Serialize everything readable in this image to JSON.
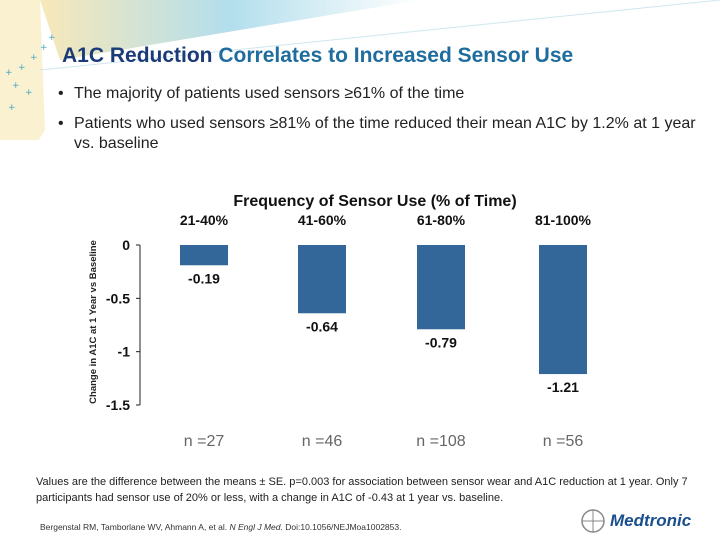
{
  "title": {
    "part1": "A1C Reduction",
    "part2": "Correlates to Increased Sensor Use"
  },
  "bullets": [
    "The majority of patients used sensors ≥61% of the time",
    "Patients who used sensors ≥81% of the time reduced their mean A1C by 1.2% at 1 year vs. baseline"
  ],
  "bullet_glyph": "•",
  "chart_data": {
    "type": "bar",
    "title": "Frequency of Sensor Use (% of Time)",
    "ylabel": "Change in A1C at 1 Year vs Baseline",
    "categories": [
      "21-40%",
      "41-60%",
      "61-80%",
      "81-100%"
    ],
    "values": [
      -0.19,
      -0.64,
      -0.79,
      -1.21
    ],
    "data_labels": [
      "-0.19",
      "-0.64",
      "-0.79",
      "-1.21"
    ],
    "n_labels": [
      "n =27",
      "n =46",
      "n =108",
      "n =56"
    ],
    "yticks": [
      "0",
      "-0.5",
      "-1",
      "-1.5"
    ],
    "ytick_values": [
      0,
      -0.5,
      -1,
      -1.5
    ],
    "ylim": [
      -1.5,
      0
    ],
    "grid": false,
    "bar_color": "#336699"
  },
  "footnote": "Values are the difference between the means ± SE. p=0.003 for association between sensor wear and A1C reduction at 1 year.  Only 7 participants had sensor use of 20% or less, with a change in A1C of -0.43 at 1 year vs. baseline.",
  "citation": {
    "authors": "Bergenstal RM, Tamborlane WV, Ahmann A, et al. ",
    "journal": "N Engl J Med.",
    "doi": " Doi:10.1056/NEJMoa1002853."
  },
  "logo": "Medtronic"
}
